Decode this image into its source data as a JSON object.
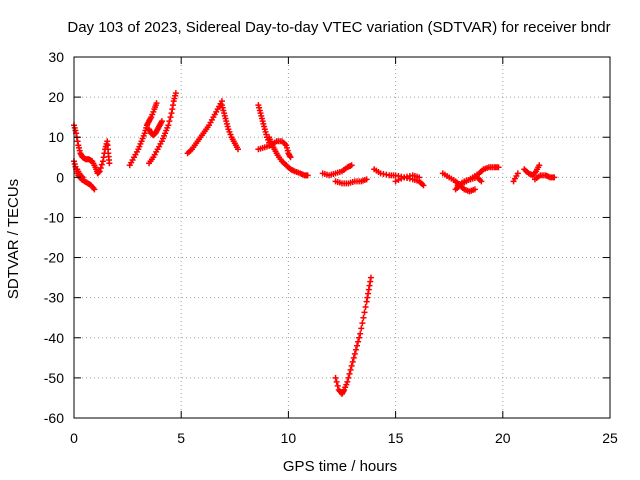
{
  "chart_data": {
    "type": "scatter",
    "title": "Day 103 of 2023, Sidereal Day-to-day VTEC variation (SDTVAR) for receiver bndr",
    "xlabel": "GPS time / hours",
    "ylabel": "SDTVAR / TECUs",
    "xlim": [
      0,
      25
    ],
    "ylim": [
      -60,
      30
    ],
    "x_ticks": [
      0,
      5,
      10,
      15,
      20,
      25
    ],
    "y_ticks": [
      -60,
      -50,
      -40,
      -30,
      -20,
      -10,
      0,
      10,
      20,
      30
    ],
    "x_tick_labels": [
      "0",
      "5",
      "10",
      "15",
      "20",
      "25"
    ],
    "y_tick_labels": [
      "-60",
      "-50",
      "-40",
      "-30",
      "-20",
      "-10",
      "0",
      "10",
      "20",
      "30"
    ],
    "grid": true,
    "marker": "plus",
    "color": "#ff0000",
    "segments": [
      [
        [
          0.0,
          4
        ],
        [
          0.1,
          2
        ],
        [
          0.2,
          0.5
        ],
        [
          0.35,
          -0.5
        ],
        [
          0.5,
          -1
        ],
        [
          0.65,
          -1.5
        ],
        [
          0.8,
          -2
        ],
        [
          0.95,
          -3
        ]
      ],
      [
        [
          0.0,
          13
        ],
        [
          0.1,
          11
        ],
        [
          0.2,
          8
        ],
        [
          0.3,
          6
        ],
        [
          0.4,
          5
        ],
        [
          0.55,
          4.5
        ],
        [
          0.7,
          4.5
        ],
        [
          0.85,
          4
        ],
        [
          1.0,
          2.5
        ],
        [
          1.1,
          1
        ],
        [
          1.2,
          1.5
        ],
        [
          1.35,
          4
        ],
        [
          1.45,
          7
        ],
        [
          1.55,
          9
        ],
        [
          1.6,
          6
        ],
        [
          1.65,
          3.5
        ]
      ],
      [
        [
          0.15,
          2
        ],
        [
          0.3,
          0.5
        ],
        [
          0.4,
          0
        ]
      ],
      [
        [
          2.6,
          3
        ],
        [
          2.8,
          5
        ],
        [
          3.0,
          7
        ],
        [
          3.15,
          9
        ],
        [
          3.3,
          11
        ],
        [
          3.4,
          13
        ],
        [
          3.5,
          14
        ],
        [
          3.6,
          15
        ],
        [
          3.75,
          17
        ],
        [
          3.85,
          18.5
        ]
      ],
      [
        [
          3.5,
          12
        ],
        [
          3.6,
          11
        ],
        [
          3.7,
          10.5
        ],
        [
          3.8,
          11
        ],
        [
          3.9,
          12
        ],
        [
          4.0,
          13
        ],
        [
          4.1,
          14
        ]
      ],
      [
        [
          3.5,
          3.5
        ],
        [
          3.7,
          5
        ],
        [
          3.9,
          7
        ],
        [
          4.1,
          9
        ],
        [
          4.25,
          11
        ],
        [
          4.4,
          13
        ],
        [
          4.55,
          16
        ],
        [
          4.65,
          19
        ],
        [
          4.75,
          21
        ]
      ],
      [
        [
          5.3,
          6
        ],
        [
          5.5,
          7
        ],
        [
          5.7,
          8.5
        ],
        [
          5.9,
          10
        ],
        [
          6.1,
          11.5
        ],
        [
          6.3,
          13
        ],
        [
          6.5,
          15
        ],
        [
          6.7,
          17
        ],
        [
          6.9,
          19
        ]
      ],
      [
        [
          6.9,
          18
        ],
        [
          7.0,
          16
        ],
        [
          7.1,
          14
        ],
        [
          7.2,
          12
        ],
        [
          7.35,
          10
        ],
        [
          7.5,
          8.5
        ],
        [
          7.65,
          7
        ]
      ],
      [
        [
          8.6,
          18
        ],
        [
          8.7,
          16
        ],
        [
          8.8,
          14
        ],
        [
          8.9,
          12
        ],
        [
          9.0,
          10
        ],
        [
          9.15,
          8
        ]
      ],
      [
        [
          8.6,
          7
        ],
        [
          8.9,
          7.5
        ],
        [
          9.2,
          8
        ],
        [
          9.45,
          9
        ],
        [
          9.7,
          9
        ],
        [
          9.9,
          8
        ],
        [
          10.0,
          6
        ],
        [
          10.1,
          5
        ]
      ],
      [
        [
          9.1,
          10
        ],
        [
          9.2,
          8.5
        ],
        [
          9.35,
          7
        ],
        [
          9.5,
          5.5
        ],
        [
          9.7,
          4
        ],
        [
          9.9,
          3
        ],
        [
          10.1,
          2
        ],
        [
          10.3,
          1.5
        ],
        [
          10.55,
          1
        ],
        [
          10.75,
          0.5
        ],
        [
          10.9,
          0.5
        ]
      ],
      [
        [
          11.6,
          1
        ],
        [
          11.9,
          0.5
        ],
        [
          12.2,
          1
        ],
        [
          12.5,
          1.5
        ],
        [
          12.75,
          2.5
        ],
        [
          12.95,
          3
        ]
      ],
      [
        [
          12.2,
          -1
        ],
        [
          12.5,
          -1.5
        ],
        [
          12.8,
          -1.5
        ],
        [
          13.1,
          -1
        ],
        [
          13.4,
          -1
        ],
        [
          13.65,
          -0.5
        ]
      ],
      [
        [
          12.2,
          -50
        ],
        [
          12.35,
          -53
        ],
        [
          12.5,
          -54
        ],
        [
          12.6,
          -53
        ],
        [
          12.75,
          -51
        ],
        [
          12.9,
          -48
        ],
        [
          13.05,
          -45
        ],
        [
          13.2,
          -42
        ],
        [
          13.35,
          -39
        ],
        [
          13.5,
          -35
        ],
        [
          13.65,
          -31
        ],
        [
          13.75,
          -28
        ],
        [
          13.85,
          -25
        ]
      ],
      [
        [
          14.0,
          2
        ],
        [
          14.3,
          1
        ],
        [
          14.7,
          0.5
        ],
        [
          15.0,
          0.5
        ],
        [
          15.4,
          0
        ],
        [
          15.8,
          -0.5
        ],
        [
          16.1,
          -1
        ],
        [
          16.3,
          -2
        ]
      ],
      [
        [
          15.0,
          -1
        ],
        [
          15.4,
          0
        ],
        [
          15.8,
          0.5
        ],
        [
          16.1,
          0
        ]
      ],
      [
        [
          17.2,
          1
        ],
        [
          17.5,
          0
        ],
        [
          17.8,
          -1
        ],
        [
          18.0,
          -2
        ],
        [
          18.2,
          -3
        ],
        [
          18.45,
          -3.5
        ],
        [
          18.7,
          -3
        ]
      ],
      [
        [
          17.8,
          -3
        ],
        [
          18.0,
          -2
        ],
        [
          18.3,
          -1
        ],
        [
          18.6,
          0
        ],
        [
          18.9,
          1
        ],
        [
          19.1,
          2
        ],
        [
          19.35,
          2.5
        ],
        [
          19.6,
          2.5
        ],
        [
          19.8,
          2.5
        ]
      ],
      [
        [
          17.9,
          -2
        ],
        [
          18.2,
          -1
        ],
        [
          18.5,
          -0.5
        ],
        [
          18.8,
          0
        ],
        [
          19.0,
          -1
        ]
      ],
      [
        [
          20.5,
          -1
        ],
        [
          20.7,
          1
        ]
      ],
      [
        [
          21.0,
          2
        ],
        [
          21.2,
          1
        ],
        [
          21.4,
          0.5
        ],
        [
          21.55,
          1.5
        ],
        [
          21.7,
          3
        ]
      ],
      [
        [
          21.5,
          -0.5
        ],
        [
          21.75,
          0.5
        ],
        [
          22.0,
          0.5
        ],
        [
          22.2,
          0
        ],
        [
          22.4,
          0
        ]
      ]
    ]
  }
}
